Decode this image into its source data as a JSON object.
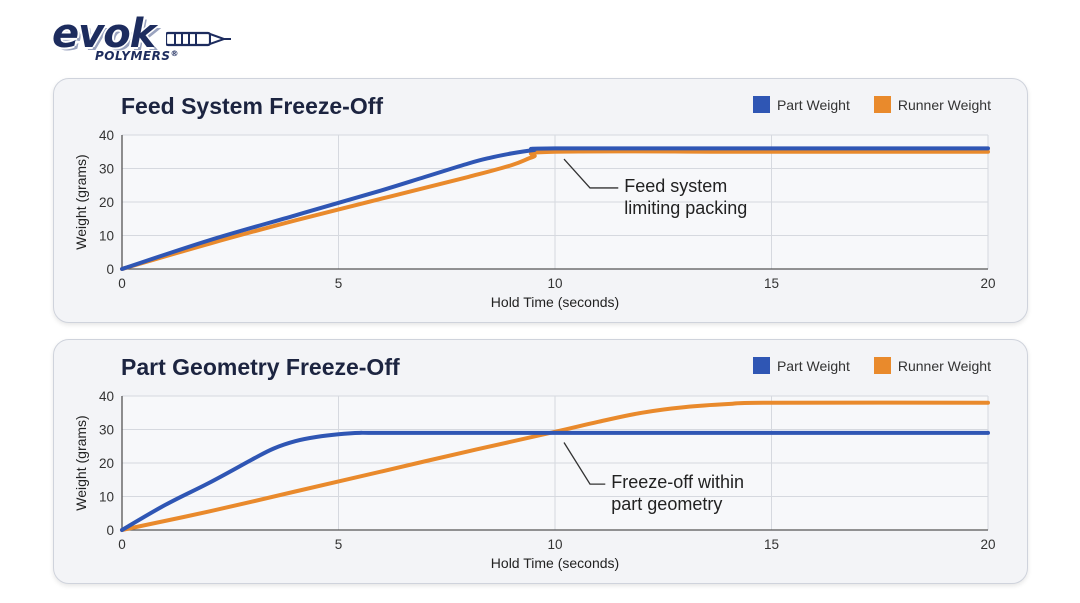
{
  "logo": {
    "word": "evok",
    "sub": "POLYMERS",
    "reg": "®"
  },
  "colors": {
    "part": "#2f56b4",
    "runner": "#e98a2c",
    "grid": "#d6d9df",
    "axis": "#555555"
  },
  "chart_data": [
    {
      "type": "line",
      "title": "Feed System Freeze-Off",
      "xlabel": "Hold Time (seconds)",
      "ylabel": "Weight (grams)",
      "xlim": [
        0,
        20
      ],
      "ylim": [
        0,
        40
      ],
      "xticks": [
        0,
        5,
        10,
        15,
        20
      ],
      "yticks": [
        0,
        10,
        20,
        30,
        40
      ],
      "legend": [
        "Part Weight",
        "Runner Weight"
      ],
      "series": [
        {
          "name": "Part Weight",
          "x": [
            0,
            2,
            4,
            6,
            7,
            8,
            8.5,
            9,
            9.5,
            10,
            15,
            20
          ],
          "y": [
            0,
            8.5,
            16,
            23.5,
            27.5,
            31.5,
            33.2,
            34.5,
            35.5,
            36,
            36,
            36
          ]
        },
        {
          "name": "Runner Weight",
          "x": [
            0,
            2,
            4,
            6,
            8,
            9,
            9.5,
            10,
            15,
            20
          ],
          "y": [
            0,
            7.5,
            14.5,
            21,
            27.5,
            31,
            33.5,
            35,
            35,
            35
          ]
        }
      ],
      "annotation": {
        "lines": [
          "Feed system",
          "limiting packing"
        ],
        "target_x": 10,
        "target_y": 35.5,
        "text_x": 11.6,
        "text_y": 23
      }
    },
    {
      "type": "line",
      "title": "Part Geometry Freeze-Off",
      "xlabel": "Hold Time (seconds)",
      "ylabel": "Weight (grams)",
      "xlim": [
        0,
        20
      ],
      "ylim": [
        0,
        40
      ],
      "xticks": [
        0,
        5,
        10,
        15,
        20
      ],
      "yticks": [
        0,
        10,
        20,
        30,
        40
      ],
      "legend": [
        "Part Weight",
        "Runner Weight"
      ],
      "series": [
        {
          "name": "Part Weight",
          "x": [
            0,
            1,
            2,
            3,
            3.5,
            4,
            4.5,
            5,
            5.5,
            6,
            10,
            20
          ],
          "y": [
            0,
            7.5,
            14,
            21,
            24.3,
            26.5,
            27.8,
            28.6,
            29,
            29,
            29,
            29
          ]
        },
        {
          "name": "Runner Weight",
          "x": [
            0,
            2,
            4,
            6,
            8,
            10,
            11,
            12,
            13,
            14,
            15,
            20
          ],
          "y": [
            0,
            5.5,
            11.5,
            17.5,
            23.5,
            29.3,
            32.3,
            35,
            36.7,
            37.6,
            38,
            38
          ]
        }
      ],
      "annotation": {
        "lines": [
          "Freeze-off within",
          "part geometry"
        ],
        "target_x": 10,
        "target_y": 28.8,
        "text_x": 11.3,
        "text_y": 12.5
      }
    }
  ]
}
